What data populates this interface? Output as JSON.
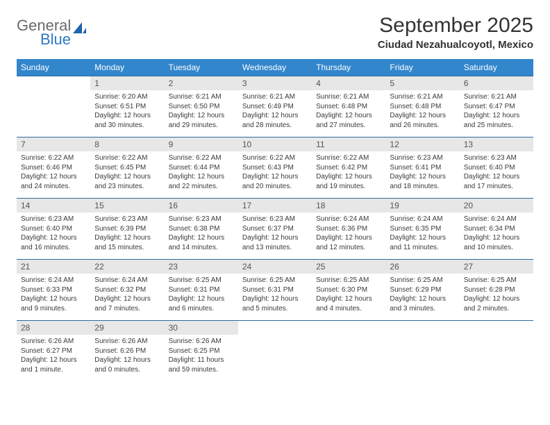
{
  "logo": {
    "line1": "General",
    "line2": "Blue",
    "accent_color": "#2f78c2",
    "text_color": "#6a6a6a"
  },
  "header": {
    "title": "September 2025",
    "subtitle": "Ciudad Nezahualcoyotl, Mexico"
  },
  "calendar": {
    "header_bg": "#3286cc",
    "header_fg": "#ffffff",
    "rule_color": "#2f6aa0",
    "daynum_bg": "#e7e7e7",
    "day_names": [
      "Sunday",
      "Monday",
      "Tuesday",
      "Wednesday",
      "Thursday",
      "Friday",
      "Saturday"
    ],
    "weeks": [
      [
        {
          "n": "",
          "sr": "",
          "ss": "",
          "dl": ""
        },
        {
          "n": "1",
          "sr": "Sunrise: 6:20 AM",
          "ss": "Sunset: 6:51 PM",
          "dl": "Daylight: 12 hours and 30 minutes."
        },
        {
          "n": "2",
          "sr": "Sunrise: 6:21 AM",
          "ss": "Sunset: 6:50 PM",
          "dl": "Daylight: 12 hours and 29 minutes."
        },
        {
          "n": "3",
          "sr": "Sunrise: 6:21 AM",
          "ss": "Sunset: 6:49 PM",
          "dl": "Daylight: 12 hours and 28 minutes."
        },
        {
          "n": "4",
          "sr": "Sunrise: 6:21 AM",
          "ss": "Sunset: 6:48 PM",
          "dl": "Daylight: 12 hours and 27 minutes."
        },
        {
          "n": "5",
          "sr": "Sunrise: 6:21 AM",
          "ss": "Sunset: 6:48 PM",
          "dl": "Daylight: 12 hours and 26 minutes."
        },
        {
          "n": "6",
          "sr": "Sunrise: 6:21 AM",
          "ss": "Sunset: 6:47 PM",
          "dl": "Daylight: 12 hours and 25 minutes."
        }
      ],
      [
        {
          "n": "7",
          "sr": "Sunrise: 6:22 AM",
          "ss": "Sunset: 6:46 PM",
          "dl": "Daylight: 12 hours and 24 minutes."
        },
        {
          "n": "8",
          "sr": "Sunrise: 6:22 AM",
          "ss": "Sunset: 6:45 PM",
          "dl": "Daylight: 12 hours and 23 minutes."
        },
        {
          "n": "9",
          "sr": "Sunrise: 6:22 AM",
          "ss": "Sunset: 6:44 PM",
          "dl": "Daylight: 12 hours and 22 minutes."
        },
        {
          "n": "10",
          "sr": "Sunrise: 6:22 AM",
          "ss": "Sunset: 6:43 PM",
          "dl": "Daylight: 12 hours and 20 minutes."
        },
        {
          "n": "11",
          "sr": "Sunrise: 6:22 AM",
          "ss": "Sunset: 6:42 PM",
          "dl": "Daylight: 12 hours and 19 minutes."
        },
        {
          "n": "12",
          "sr": "Sunrise: 6:23 AM",
          "ss": "Sunset: 6:41 PM",
          "dl": "Daylight: 12 hours and 18 minutes."
        },
        {
          "n": "13",
          "sr": "Sunrise: 6:23 AM",
          "ss": "Sunset: 6:40 PM",
          "dl": "Daylight: 12 hours and 17 minutes."
        }
      ],
      [
        {
          "n": "14",
          "sr": "Sunrise: 6:23 AM",
          "ss": "Sunset: 6:40 PM",
          "dl": "Daylight: 12 hours and 16 minutes."
        },
        {
          "n": "15",
          "sr": "Sunrise: 6:23 AM",
          "ss": "Sunset: 6:39 PM",
          "dl": "Daylight: 12 hours and 15 minutes."
        },
        {
          "n": "16",
          "sr": "Sunrise: 6:23 AM",
          "ss": "Sunset: 6:38 PM",
          "dl": "Daylight: 12 hours and 14 minutes."
        },
        {
          "n": "17",
          "sr": "Sunrise: 6:23 AM",
          "ss": "Sunset: 6:37 PM",
          "dl": "Daylight: 12 hours and 13 minutes."
        },
        {
          "n": "18",
          "sr": "Sunrise: 6:24 AM",
          "ss": "Sunset: 6:36 PM",
          "dl": "Daylight: 12 hours and 12 minutes."
        },
        {
          "n": "19",
          "sr": "Sunrise: 6:24 AM",
          "ss": "Sunset: 6:35 PM",
          "dl": "Daylight: 12 hours and 11 minutes."
        },
        {
          "n": "20",
          "sr": "Sunrise: 6:24 AM",
          "ss": "Sunset: 6:34 PM",
          "dl": "Daylight: 12 hours and 10 minutes."
        }
      ],
      [
        {
          "n": "21",
          "sr": "Sunrise: 6:24 AM",
          "ss": "Sunset: 6:33 PM",
          "dl": "Daylight: 12 hours and 9 minutes."
        },
        {
          "n": "22",
          "sr": "Sunrise: 6:24 AM",
          "ss": "Sunset: 6:32 PM",
          "dl": "Daylight: 12 hours and 7 minutes."
        },
        {
          "n": "23",
          "sr": "Sunrise: 6:25 AM",
          "ss": "Sunset: 6:31 PM",
          "dl": "Daylight: 12 hours and 6 minutes."
        },
        {
          "n": "24",
          "sr": "Sunrise: 6:25 AM",
          "ss": "Sunset: 6:31 PM",
          "dl": "Daylight: 12 hours and 5 minutes."
        },
        {
          "n": "25",
          "sr": "Sunrise: 6:25 AM",
          "ss": "Sunset: 6:30 PM",
          "dl": "Daylight: 12 hours and 4 minutes."
        },
        {
          "n": "26",
          "sr": "Sunrise: 6:25 AM",
          "ss": "Sunset: 6:29 PM",
          "dl": "Daylight: 12 hours and 3 minutes."
        },
        {
          "n": "27",
          "sr": "Sunrise: 6:25 AM",
          "ss": "Sunset: 6:28 PM",
          "dl": "Daylight: 12 hours and 2 minutes."
        }
      ],
      [
        {
          "n": "28",
          "sr": "Sunrise: 6:26 AM",
          "ss": "Sunset: 6:27 PM",
          "dl": "Daylight: 12 hours and 1 minute."
        },
        {
          "n": "29",
          "sr": "Sunrise: 6:26 AM",
          "ss": "Sunset: 6:26 PM",
          "dl": "Daylight: 12 hours and 0 minutes."
        },
        {
          "n": "30",
          "sr": "Sunrise: 6:26 AM",
          "ss": "Sunset: 6:25 PM",
          "dl": "Daylight: 11 hours and 59 minutes."
        },
        {
          "n": "",
          "sr": "",
          "ss": "",
          "dl": ""
        },
        {
          "n": "",
          "sr": "",
          "ss": "",
          "dl": ""
        },
        {
          "n": "",
          "sr": "",
          "ss": "",
          "dl": ""
        },
        {
          "n": "",
          "sr": "",
          "ss": "",
          "dl": ""
        }
      ]
    ]
  }
}
